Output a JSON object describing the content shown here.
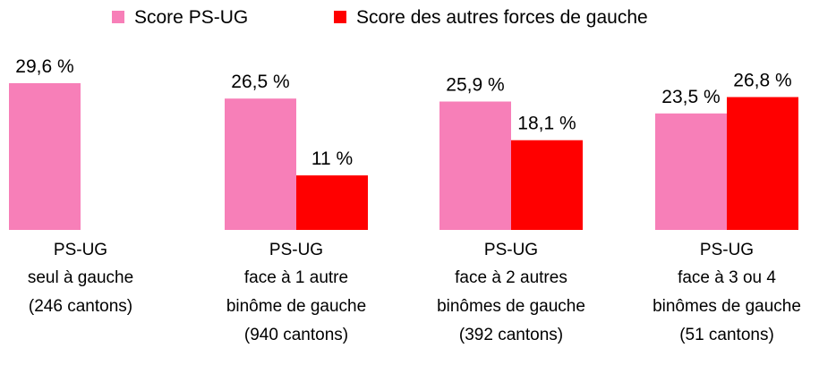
{
  "chart_data": {
    "type": "bar",
    "title": "",
    "xlabel": "",
    "ylabel": "",
    "ylim": [
      0,
      30
    ],
    "grid": false,
    "legend": "top",
    "categories": [
      [
        "PS-UG",
        "seul à gauche",
        "(246 cantons)"
      ],
      [
        "PS-UG",
        "face à 1 autre",
        "binôme de gauche",
        "(940 cantons)"
      ],
      [
        "PS-UG",
        "face à 2 autres",
        "binômes de gauche",
        "(392 cantons)"
      ],
      [
        "PS-UG",
        "face à 3 ou 4",
        "binômes de gauche",
        "(51 cantons)"
      ]
    ],
    "series": [
      {
        "name": "Score PS-UG",
        "color": "#f77fb8",
        "values": [
          29.6,
          26.5,
          25.9,
          23.5
        ],
        "labels": [
          "29,6 %",
          "26,5 %",
          "25,9 %",
          "23,5 %"
        ]
      },
      {
        "name": "Score des autres forces de gauche",
        "color": "#ff0000",
        "values": [
          null,
          11,
          18.1,
          26.8
        ],
        "labels": [
          "",
          "11 %",
          "18,1 %",
          "26,8 %"
        ]
      }
    ]
  }
}
